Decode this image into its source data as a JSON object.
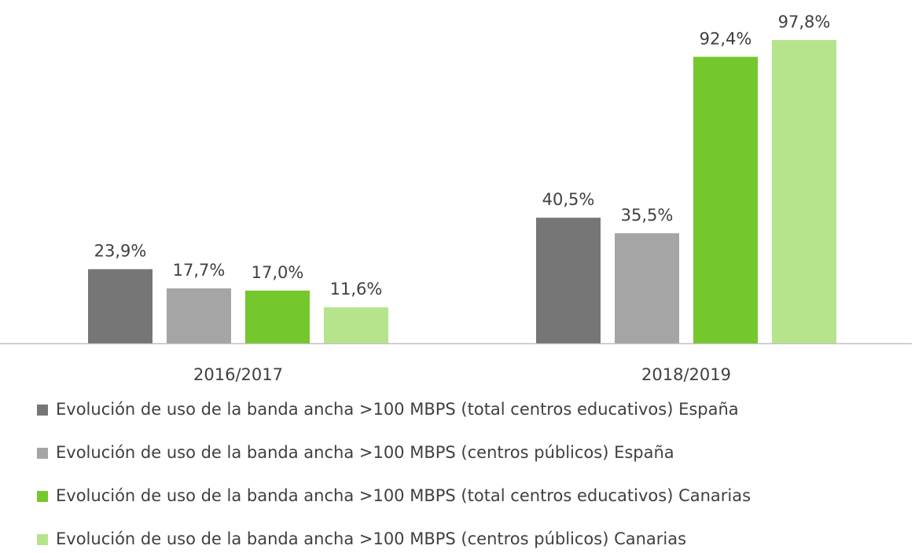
{
  "chart_data": {
    "type": "bar",
    "categories": [
      "2016/2017",
      "2018/2019"
    ],
    "series": [
      {
        "name": "Evolución de uso de la banda ancha >100 MBPS (total centros educativos) España",
        "color": "#767676",
        "values": [
          23.9,
          40.5
        ],
        "value_labels": [
          "23,9%",
          "40,5%"
        ]
      },
      {
        "name": "Evolución de uso de la banda ancha >100 MBPS (centros públicos) España",
        "color": "#a5a5a5",
        "values": [
          17.7,
          35.5
        ],
        "value_labels": [
          "17,7%",
          "35,5%"
        ]
      },
      {
        "name": "Evolución de uso de la banda ancha >100 MBPS (total centros educativos) Canarias",
        "color": "#74c82e",
        "values": [
          17.0,
          92.4
        ],
        "value_labels": [
          "17,0%",
          "92,4%"
        ]
      },
      {
        "name": "Evolución de uso de la banda ancha >100 MBPS (centros públicos) Canarias",
        "color": "#b5e48c",
        "values": [
          11.6,
          97.8
        ],
        "value_labels": [
          "11,6%",
          "97,8%"
        ]
      }
    ],
    "legend": "bottom"
  }
}
